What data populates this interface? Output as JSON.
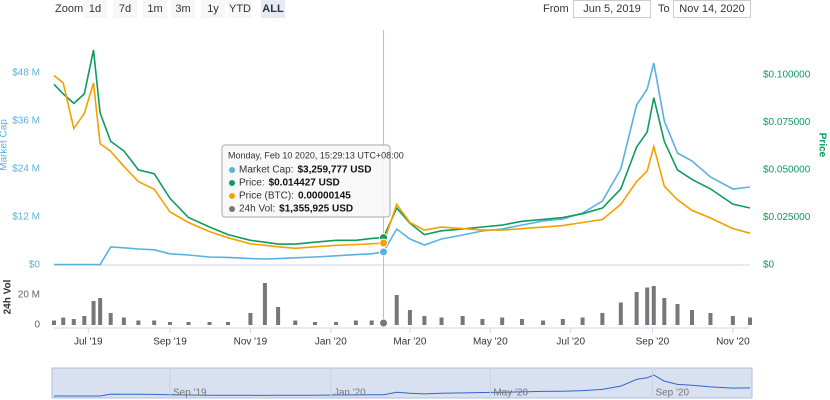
{
  "toolbar": {
    "zoom_label": "Zoom",
    "buttons": [
      "1d",
      "7d",
      "1m",
      "3m",
      "1y",
      "YTD",
      "ALL"
    ],
    "selected": "ALL",
    "from_label": "From",
    "from_value": "Jun 5, 2019",
    "to_label": "To",
    "to_value": "Nov 14, 2020"
  },
  "chart_data": {
    "type": "line",
    "ylabel": "Market Cap",
    "y2label": "Price",
    "volume_label": "24h Vol",
    "xlim": [
      "2019-06-05",
      "2020-11-14"
    ],
    "xticks": [
      {
        "value": "2019-07-01",
        "label": "Jul '19"
      },
      {
        "value": "2019-09-01",
        "label": "Sep '19"
      },
      {
        "value": "2019-11-01",
        "label": "Nov '19"
      },
      {
        "value": "2020-01-01",
        "label": "Jan '20"
      },
      {
        "value": "2020-03-01",
        "label": "Mar '20"
      },
      {
        "value": "2020-05-01",
        "label": "May '20"
      },
      {
        "value": "2020-07-01",
        "label": "Jul '20"
      },
      {
        "value": "2020-09-01",
        "label": "Sep '20"
      },
      {
        "value": "2020-11-01",
        "label": "Nov '20"
      }
    ],
    "navigator_xticks": [
      {
        "value": "2019-09-01",
        "label": "Sep '19"
      },
      {
        "value": "2020-01-01",
        "label": "Jan '20"
      },
      {
        "value": "2020-05-01",
        "label": "May '20"
      },
      {
        "value": "2020-09-01",
        "label": "Sep '20"
      }
    ],
    "ylim": [
      0,
      58000000
    ],
    "yticks": [
      {
        "value": 0,
        "label": "$0"
      },
      {
        "value": 12000000,
        "label": "$12 M"
      },
      {
        "value": 24000000,
        "label": "$24 M"
      },
      {
        "value": 36000000,
        "label": "$36 M"
      },
      {
        "value": 48000000,
        "label": "$48 M"
      }
    ],
    "y2lim": [
      0,
      0.122
    ],
    "y2ticks": [
      {
        "value": 0,
        "label": "$0"
      },
      {
        "value": 0.025,
        "label": "$0.025000"
      },
      {
        "value": 0.05,
        "label": "$0.050000"
      },
      {
        "value": 0.075,
        "label": "$0.075000"
      },
      {
        "value": 0.1,
        "label": "$0.100000"
      }
    ],
    "y3lim": [
      0,
      1.53e-05
    ],
    "volume_ylim": [
      0,
      36000000
    ],
    "volume_yticks": [
      0,
      {
        "value": 20000000,
        "label": "20 M"
      }
    ],
    "grid": false,
    "x": [
      "2019-06-05",
      "2019-06-12",
      "2019-06-20",
      "2019-06-28",
      "2019-07-05",
      "2019-07-10",
      "2019-07-18",
      "2019-07-28",
      "2019-08-08",
      "2019-08-20",
      "2019-09-01",
      "2019-09-15",
      "2019-10-01",
      "2019-10-15",
      "2019-11-01",
      "2019-11-12",
      "2019-11-22",
      "2019-12-05",
      "2019-12-20",
      "2020-01-05",
      "2020-01-20",
      "2020-02-01",
      "2020-02-10",
      "2020-02-20",
      "2020-03-01",
      "2020-03-12",
      "2020-03-25",
      "2020-04-10",
      "2020-04-25",
      "2020-05-10",
      "2020-05-25",
      "2020-06-10",
      "2020-06-25",
      "2020-07-10",
      "2020-07-25",
      "2020-08-08",
      "2020-08-20",
      "2020-08-28",
      "2020-09-02",
      "2020-09-10",
      "2020-09-20",
      "2020-10-01",
      "2020-10-15",
      "2020-11-01",
      "2020-11-14"
    ],
    "series": [
      {
        "axis": "y",
        "color": "#5ab1e0",
        "values": [
          100000,
          100000,
          100000,
          100000,
          100000,
          100000,
          4500000,
          4300000,
          4000000,
          3800000,
          2800000,
          2500000,
          2000000,
          1900000,
          1600000,
          1500000,
          1600000,
          1800000,
          2000000,
          2300000,
          2600000,
          2800000,
          3259777,
          9000000,
          6500000,
          5000000,
          6500000,
          7500000,
          8500000,
          9000000,
          10000000,
          11000000,
          11500000,
          13000000,
          16000000,
          24000000,
          40000000,
          44000000,
          50500000,
          36000000,
          28000000,
          26000000,
          22000000,
          19000000,
          19500000
        ]
      },
      {
        "axis": "y2",
        "color": "#109b5e",
        "values": [
          0.095,
          0.09,
          0.085,
          0.09,
          0.113,
          0.08,
          0.065,
          0.06,
          0.05,
          0.048,
          0.035,
          0.025,
          0.02,
          0.016,
          0.013,
          0.012,
          0.011,
          0.011,
          0.012,
          0.013,
          0.013,
          0.014,
          0.014427,
          0.03,
          0.022,
          0.016,
          0.018,
          0.019,
          0.02,
          0.021,
          0.023,
          0.024,
          0.025,
          0.027,
          0.03,
          0.04,
          0.062,
          0.07,
          0.088,
          0.065,
          0.05,
          0.045,
          0.04,
          0.032,
          0.03
        ]
      },
      {
        "axis": "y3",
        "color": "#f5a000",
        "values": [
          1.25e-05,
          1.2e-05,
          9e-06,
          1e-05,
          1.2e-05,
          8e-06,
          7.5e-06,
          6.5e-06,
          5.5e-06,
          5e-06,
          3.5e-06,
          2.8e-06,
          2.2e-06,
          1.8e-06,
          1.4e-06,
          1.3e-06,
          1.2e-06,
          1.1e-06,
          1.2e-06,
          1.3e-06,
          1.35e-06,
          1.4e-06,
          1.45e-06,
          4e-06,
          2.8e-06,
          2.3e-06,
          2.5e-06,
          2.4e-06,
          2.3e-06,
          2.3e-06,
          2.4e-06,
          2.5e-06,
          2.6e-06,
          2.8e-06,
          3e-06,
          4e-06,
          5.5e-06,
          6.2e-06,
          7.8e-06,
          5.2e-06,
          4.3e-06,
          3.6e-06,
          3.1e-06,
          2.4e-06,
          2.1e-06
        ]
      },
      {
        "axis": "volume",
        "type": "bar",
        "color": "#777777",
        "values": [
          3000000,
          5000000,
          4000000,
          6000000,
          16000000,
          18000000,
          8000000,
          5000000,
          3000000,
          3000000,
          2000000,
          2000000,
          2000000,
          2000000,
          8000000,
          28000000,
          12000000,
          3000000,
          2000000,
          2000000,
          3000000,
          3000000,
          1355925,
          20000000,
          10000000,
          6000000,
          5000000,
          6000000,
          4000000,
          5000000,
          4000000,
          3000000,
          4000000,
          5000000,
          8000000,
          15000000,
          22000000,
          25000000,
          26000000,
          18000000,
          14000000,
          10000000,
          8000000,
          6000000,
          5000000
        ]
      }
    ],
    "tooltip": {
      "x": "2020-02-10",
      "title": "Monday, Feb 10 2020, 15:29:13 UTC+08:00",
      "rows": [
        {
          "label": "Market Cap:",
          "value": "$3,259,777 USD"
        },
        {
          "label": "Price:",
          "value": "$0.014427 USD"
        },
        {
          "label": "Price (BTC):",
          "value": "0.00000145"
        },
        {
          "label": "24h Vol:",
          "value": "$1,355,925 USD"
        }
      ]
    }
  }
}
